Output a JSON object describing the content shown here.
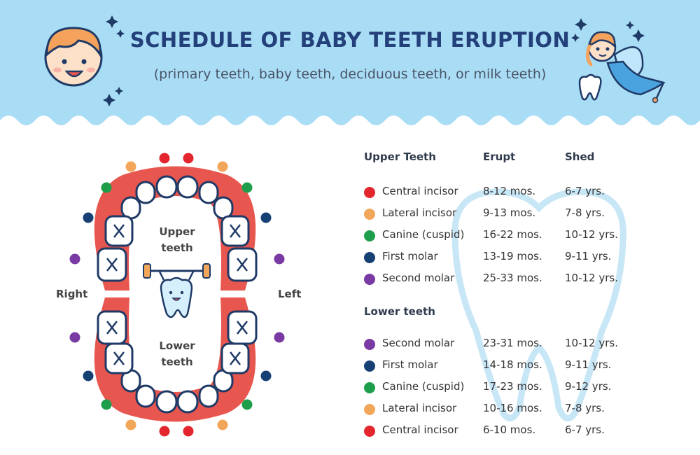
{
  "header": {
    "title": "SCHEDULE OF BABY TEETH ERUPTION",
    "subtitle": "(primary teeth, baby teeth, deciduous teeth, or milk teeth)",
    "bg_color": "#a9dcf5",
    "icons": [
      "baby-face-icon",
      "tooth-fairy-icon",
      "star-icon"
    ]
  },
  "colors": {
    "central_incisor": "#e3262d",
    "lateral_incisor": "#f2a65a",
    "canine": "#1e9e4a",
    "first_molar": "#163f74",
    "second_molar": "#7a3aa3",
    "gum": "#e8574f",
    "tooth_outline": "#1f3a66"
  },
  "diagram": {
    "upper_label": [
      "Upper",
      "teeth"
    ],
    "lower_label": [
      "Lower",
      "teeth"
    ],
    "right_label": "Right",
    "left_label": "Left",
    "mascot_icon": "tooth-with-barbell-icon"
  },
  "table": {
    "headers": {
      "upper": "Upper Teeth",
      "erupt": "Erupt",
      "shed": "Shed"
    },
    "lower_header": "Lower teeth",
    "upper_rows": [
      {
        "name": "Central incisor",
        "erupt": "8-12 mos.",
        "shed": "6-7 yrs.",
        "color": "#e3262d"
      },
      {
        "name": "Lateral incisor",
        "erupt": "9-13 mos.",
        "shed": "7-8 yrs.",
        "color": "#f2a65a"
      },
      {
        "name": "Canine (cuspid)",
        "erupt": "16-22 mos.",
        "shed": "10-12 yrs.",
        "color": "#1e9e4a"
      },
      {
        "name": "First molar",
        "erupt": "13-19 mos.",
        "shed": "9-11 yrs.",
        "color": "#163f74"
      },
      {
        "name": "Second molar",
        "erupt": "25-33 mos.",
        "shed": "10-12 yrs.",
        "color": "#7a3aa3"
      }
    ],
    "lower_rows": [
      {
        "name": "Second molar",
        "erupt": "23-31 mos.",
        "shed": "10-12 yrs.",
        "color": "#7a3aa3"
      },
      {
        "name": "First molar",
        "erupt": "14-18 mos.",
        "shed": "9-11 yrs.",
        "color": "#163f74"
      },
      {
        "name": "Canine (cuspid)",
        "erupt": "17-23 mos.",
        "shed": "9-12 yrs.",
        "color": "#1e9e4a"
      },
      {
        "name": "Lateral incisor",
        "erupt": "10-16 mos.",
        "shed": "7-8 yrs.",
        "color": "#f2a65a"
      },
      {
        "name": "Central incisor",
        "erupt": "6-10 mos.",
        "shed": "6-7 yrs.",
        "color": "#e3262d"
      }
    ]
  }
}
